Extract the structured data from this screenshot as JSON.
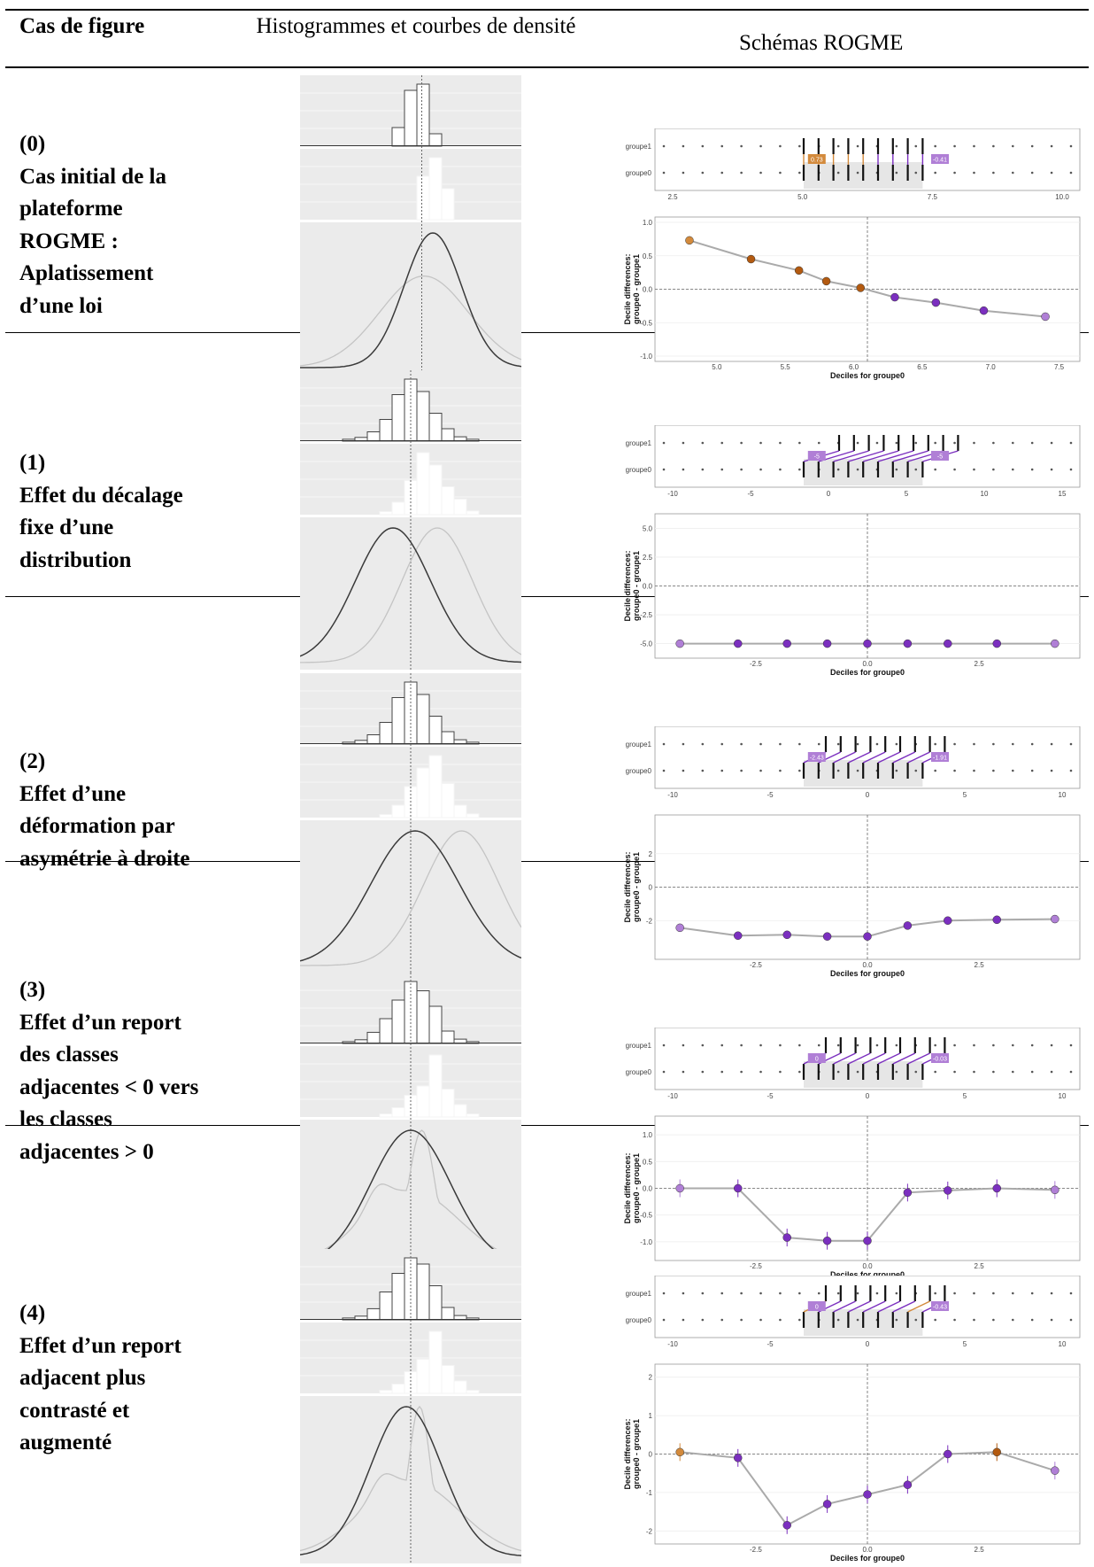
{
  "header": {
    "col1": "Cas de figure",
    "col2": "Histogrammes et courbes de densité",
    "col3": "Schémas ROGME"
  },
  "rows": [
    {
      "id": "(0)",
      "title": "Cas initial de la plateforme ROGME : Aplatissement d’une loi"
    },
    {
      "id": "(1)",
      "title": "Effet du décalage fixe d’une distribution"
    },
    {
      "id": "(2)",
      "title": "Effet d’une déformation par asymétrie à droite"
    },
    {
      "id": "(3)",
      "title": "Effet d’un report des classes adjacentes < 0 vers les classes adjacentes > 0"
    },
    {
      "id": "(4)",
      "title": "Effet d’un report adjacent plus contrasté et augmenté"
    }
  ],
  "rogme_labels": {
    "group_top": "groupe1",
    "group_bottom": "groupe0",
    "ylabel_line1": "Decile differences:",
    "ylabel_line2": "groupe0 - groupe1",
    "xlabel": "Deciles for groupe0"
  },
  "chart_data": [
    {
      "type": "scatter",
      "case": "(0)",
      "strip_ticks": [
        "2.5",
        "5.0",
        "7.5",
        "10.0"
      ],
      "strip_badges": [
        "0.73",
        "-0.41"
      ],
      "x": [
        4.8,
        5.25,
        5.6,
        5.8,
        6.05,
        6.3,
        6.6,
        6.95,
        7.4
      ],
      "y": [
        0.73,
        0.45,
        0.28,
        0.12,
        0.02,
        -0.12,
        -0.2,
        -0.32,
        -0.41
      ],
      "xlim": [
        4.6,
        7.6
      ],
      "ylim": [
        -1.0,
        1.0
      ],
      "x_ticks": [
        "5.0",
        "5.5",
        "6.0",
        "6.5",
        "7.0",
        "7.5"
      ],
      "y_ticks": [
        "1.0",
        "0.5",
        "0.0",
        "-0.5",
        "-1.0"
      ]
    },
    {
      "type": "scatter",
      "case": "(1)",
      "strip_ticks": [
        "-10",
        "-5",
        "0",
        "5",
        "10",
        "15"
      ],
      "strip_badges": [
        "-5",
        "-5"
      ],
      "x": [
        -4.2,
        -2.9,
        -1.8,
        -0.9,
        0,
        0.9,
        1.8,
        2.9,
        4.2
      ],
      "y": [
        -5,
        -5,
        -5,
        -5,
        -5,
        -5,
        -5,
        -5,
        -5
      ],
      "xlim": [
        -4.6,
        4.6
      ],
      "ylim": [
        -5.8,
        5.8
      ],
      "x_ticks": [
        "-2.5",
        "0.0",
        "2.5"
      ],
      "y_ticks": [
        "5.0",
        "2.5",
        "0.0",
        "-2.5",
        "-5.0"
      ]
    },
    {
      "type": "scatter",
      "case": "(2)",
      "strip_ticks": [
        "-10",
        "-5",
        "0",
        "5",
        "10"
      ],
      "strip_badges": [
        "-2.43",
        "-1.91"
      ],
      "x": [
        -4.2,
        -2.9,
        -1.8,
        -0.9,
        0,
        0.9,
        1.8,
        2.9,
        4.2
      ],
      "y": [
        -2.43,
        -2.9,
        -2.85,
        -2.95,
        -2.95,
        -2.3,
        -2.0,
        -1.95,
        -1.91
      ],
      "xlim": [
        -4.6,
        4.6
      ],
      "ylim": [
        -4,
        4
      ],
      "x_ticks": [
        "-2.5",
        "0.0",
        "2.5"
      ],
      "y_ticks": [
        "2",
        "0",
        "-2"
      ]
    },
    {
      "type": "scatter",
      "case": "(3)",
      "strip_ticks": [
        "-10",
        "-5",
        "0",
        "5",
        "10"
      ],
      "strip_badges": [
        "0",
        "-0.03"
      ],
      "x": [
        -4.2,
        -2.9,
        -1.8,
        -0.9,
        0,
        0.9,
        1.8,
        2.9,
        4.2
      ],
      "y": [
        0,
        0,
        -0.92,
        -0.98,
        -0.98,
        -0.08,
        -0.04,
        0,
        -0.03
      ],
      "xlim": [
        -4.6,
        4.6
      ],
      "ylim": [
        -1.25,
        1.25
      ],
      "x_ticks": [
        "-2.5",
        "0.0",
        "2.5"
      ],
      "y_ticks": [
        "1.0",
        "0.5",
        "0.0",
        "-0.5",
        "-1.0"
      ]
    },
    {
      "type": "scatter",
      "case": "(4)",
      "strip_ticks": [
        "-10",
        "-5",
        "0",
        "5",
        "10"
      ],
      "strip_badges": [
        "0",
        "-0.43"
      ],
      "x": [
        -4.2,
        -2.9,
        -1.8,
        -0.9,
        0,
        0.9,
        1.8,
        2.9,
        4.2
      ],
      "y": [
        0.05,
        -0.1,
        -1.85,
        -1.3,
        -1.05,
        -0.8,
        0.0,
        0.05,
        -0.43
      ],
      "xlim": [
        -4.6,
        4.6
      ],
      "ylim": [
        -2.2,
        2.2
      ],
      "x_ticks": [
        "-2.5",
        "0.0",
        "2.5"
      ],
      "y_ticks": [
        "2",
        "1",
        "0",
        "-1",
        "-2"
      ]
    }
  ],
  "colors": {
    "orange": "#d38a3c",
    "dark_orange": "#b35a10",
    "purple": "#7b2fbf",
    "light_purple": "#b07fd6",
    "panel_bg": "#ebebeb",
    "rogme_bg": "#ffffff"
  }
}
